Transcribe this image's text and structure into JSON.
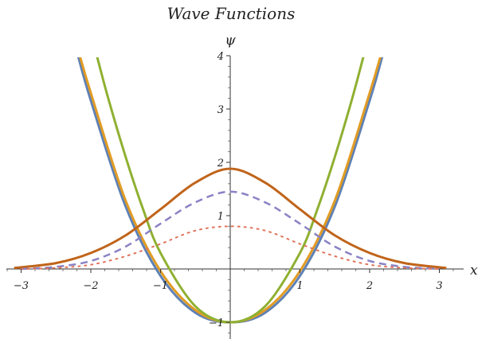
{
  "chart_data": {
    "type": "line",
    "title": "Wave Functions",
    "xlabel": "x",
    "ylabel": "ψ",
    "xlim": [
      -3.3,
      3.5
    ],
    "ylim": [
      -1.3,
      4.0
    ],
    "x_ticks": [
      -3,
      -2,
      -1,
      1,
      2,
      3
    ],
    "x_tick_labels": [
      "−3",
      "−2",
      "−1",
      "1",
      "2",
      "3"
    ],
    "y_ticks": [
      -1,
      1,
      2,
      3,
      4
    ],
    "y_tick_labels": [
      "−1",
      "1",
      "2",
      "3",
      "4"
    ],
    "grid": false,
    "legend": "none",
    "series": [
      {
        "style": "solid",
        "color": "#5e81b5",
        "width": 3,
        "x": [
          -2.2,
          -2.0,
          -1.5,
          -1.0,
          -0.5,
          0.0,
          0.5,
          1.0,
          1.5,
          2.0,
          2.2
        ],
        "y": [
          4.08,
          3.16,
          1.17,
          -0.13,
          -0.82,
          -1.0,
          -0.82,
          -0.13,
          1.17,
          3.16,
          4.08
        ]
      },
      {
        "style": "solid",
        "color": "#e19c24",
        "width": 3,
        "x": [
          -2.18,
          -2.0,
          -1.5,
          -1.0,
          -0.5,
          0.0,
          0.5,
          1.0,
          1.5,
          2.0,
          2.18
        ],
        "y": [
          4.1,
          3.3,
          1.28,
          -0.04,
          -0.77,
          -1.0,
          -0.77,
          -0.04,
          1.28,
          3.3,
          4.1
        ]
      },
      {
        "style": "solid",
        "color": "#8fb032",
        "width": 3,
        "x": [
          -1.93,
          -1.75,
          -1.5,
          -1.25,
          -1.0,
          -0.5,
          0.0,
          0.5,
          1.0,
          1.25,
          1.5,
          1.75,
          1.93
        ],
        "y": [
          4.08,
          3.2,
          2.1,
          1.12,
          0.3,
          -0.7,
          -1.0,
          -0.7,
          0.3,
          1.12,
          2.1,
          3.2,
          4.08
        ]
      },
      {
        "style": "solid",
        "color": "#c0641a",
        "width": 3,
        "x": [
          -3.1,
          -2.5,
          -2.0,
          -1.5,
          -1.0,
          -0.5,
          0.0,
          0.5,
          1.0,
          1.5,
          2.0,
          2.5,
          3.1
        ],
        "y": [
          0.02,
          0.11,
          0.3,
          0.63,
          1.12,
          1.62,
          1.88,
          1.62,
          1.12,
          0.63,
          0.3,
          0.11,
          0.02
        ]
      },
      {
        "style": "dashed",
        "color": "#8a82c4",
        "width": 2.5,
        "x": [
          -3.0,
          -2.5,
          -2.0,
          -1.5,
          -1.0,
          -0.5,
          0.0,
          0.5,
          1.0,
          1.5,
          2.0,
          2.5,
          3.0
        ],
        "y": [
          0.0,
          0.04,
          0.15,
          0.42,
          0.85,
          1.25,
          1.45,
          1.25,
          0.85,
          0.42,
          0.15,
          0.04,
          0.0
        ]
      },
      {
        "style": "dotted",
        "color": "#e1725a",
        "width": 2,
        "x": [
          -3.0,
          -2.5,
          -2.0,
          -1.5,
          -1.0,
          -0.5,
          0.0,
          0.5,
          1.0,
          1.5,
          2.0,
          2.5,
          3.0
        ],
        "y": [
          0.0,
          0.02,
          0.08,
          0.24,
          0.47,
          0.72,
          0.8,
          0.72,
          0.47,
          0.24,
          0.08,
          0.02,
          0.0
        ]
      }
    ]
  }
}
